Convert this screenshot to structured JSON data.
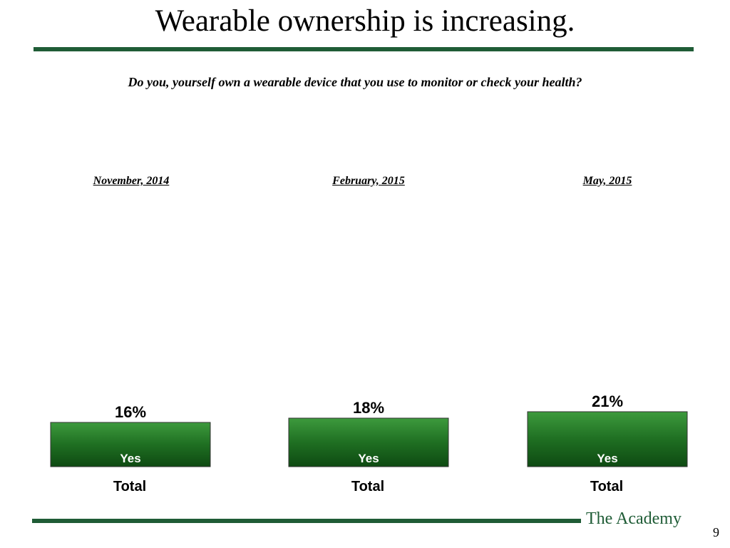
{
  "title": "Wearable ownership is increasing.",
  "question": "Do you, yourself own a wearable device that you use to monitor or check your health?",
  "footer": {
    "brand": "The Academy",
    "page_number": "9"
  },
  "colors": {
    "accent": "#1f5c36",
    "bar_top": "#2f8a2f",
    "bar_bottom": "#0f4d14"
  },
  "chart_data": [
    {
      "type": "bar",
      "title": "November, 2014",
      "categories": [
        "Total"
      ],
      "series": [
        {
          "name": "Yes",
          "values": [
            16
          ]
        }
      ],
      "value_labels": [
        "16%"
      ]
    },
    {
      "type": "bar",
      "title": "February, 2015",
      "categories": [
        "Total"
      ],
      "series": [
        {
          "name": "Yes",
          "values": [
            18
          ]
        }
      ],
      "value_labels": [
        "18%"
      ]
    },
    {
      "type": "bar",
      "title": "May, 2015",
      "categories": [
        "Total"
      ],
      "series": [
        {
          "name": "Yes",
          "values": [
            21
          ]
        }
      ],
      "value_labels": [
        "21%"
      ]
    }
  ]
}
